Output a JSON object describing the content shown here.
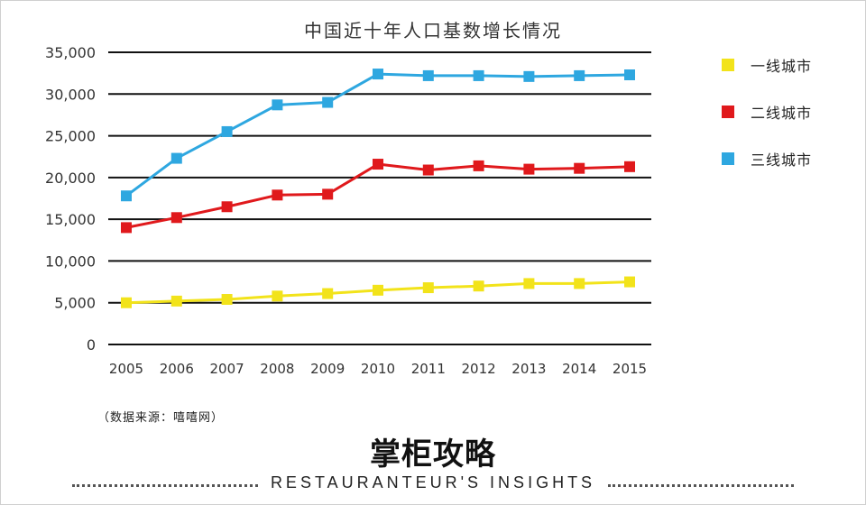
{
  "chart_data": {
    "type": "line",
    "title": "中国近十年人口基数增长情况",
    "x": [
      "2005",
      "2006",
      "2007",
      "2008",
      "2009",
      "2010",
      "2011",
      "2012",
      "2013",
      "2014",
      "2015"
    ],
    "y_ticks": [
      "0",
      "5,000",
      "10,000",
      "15,000",
      "20,000",
      "25,000",
      "30,000",
      "35,000"
    ],
    "ylim": [
      0,
      35000
    ],
    "grid": true,
    "legend_position": "right",
    "series": [
      {
        "name": "一线城市",
        "color": "#f2e31a",
        "values": [
          5000,
          5200,
          5400,
          5800,
          6100,
          6500,
          6800,
          7000,
          7300,
          7300,
          7500
        ]
      },
      {
        "name": "二线城市",
        "color": "#e0191c",
        "values": [
          14000,
          15200,
          16500,
          17900,
          18000,
          21600,
          20900,
          21400,
          21000,
          21100,
          21300
        ]
      },
      {
        "name": "三线城市",
        "color": "#2ea7e0",
        "values": [
          17800,
          22300,
          25500,
          28700,
          29000,
          32400,
          32200,
          32200,
          32100,
          32200,
          32300
        ]
      }
    ]
  },
  "footer": {
    "source": "（数据来源：嘻嘻网）",
    "brand": "掌柜攻略",
    "tagline": "RESTAURANTEUR'S  INSIGHTS"
  }
}
